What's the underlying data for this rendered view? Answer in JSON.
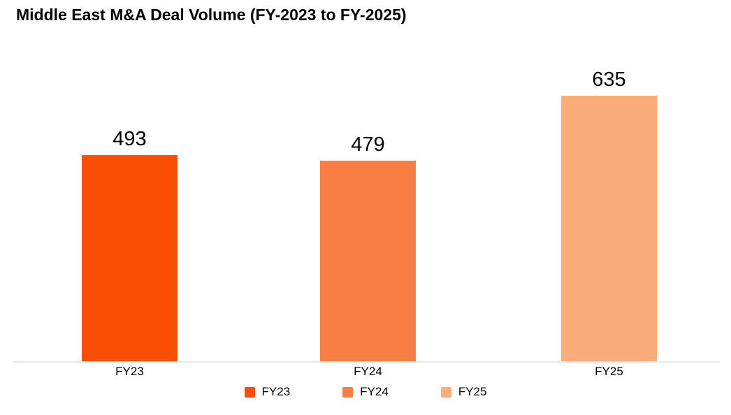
{
  "chart_data": {
    "type": "bar",
    "title": "Middle East M&A Deal Volume (FY-2023 to FY-2025)",
    "categories": [
      "FY23",
      "FY24",
      "FY25"
    ],
    "values": [
      493,
      479,
      635
    ],
    "bar_colors": [
      "#FA4E06",
      "#F97E45",
      "#FBAD79"
    ],
    "xlabel": "",
    "ylabel": "",
    "ylim": [
      0,
      700
    ],
    "grid": false,
    "axis_line_color": "#E7E7E7",
    "value_label_color": "#000000",
    "legend": {
      "position": "bottom-center",
      "entries": [
        {
          "label": "FY23",
          "color": "#FA4E06"
        },
        {
          "label": "FY24",
          "color": "#F97E45"
        },
        {
          "label": "FY25",
          "color": "#FBAD79"
        }
      ]
    }
  }
}
